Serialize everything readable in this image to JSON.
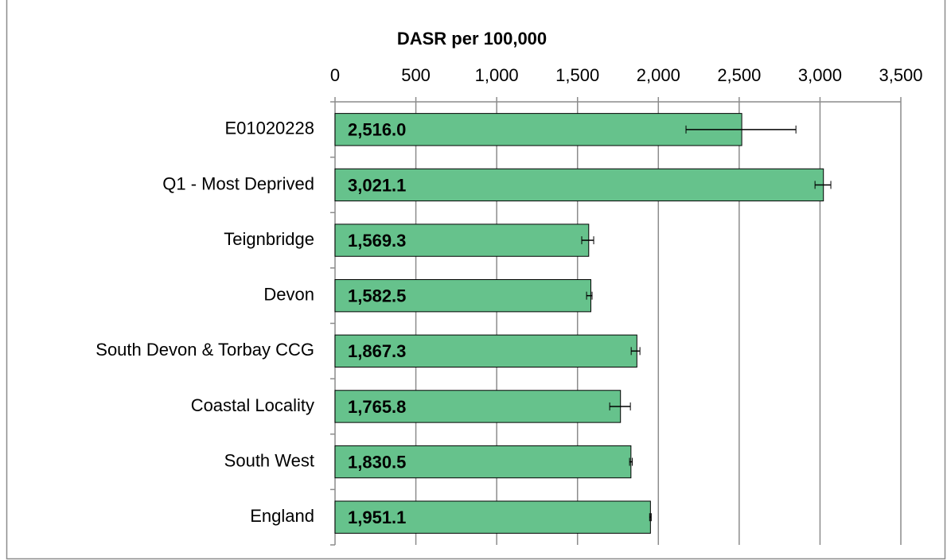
{
  "chart_data": {
    "type": "bar",
    "orientation": "horizontal",
    "axis_title": "DASR per 100,000",
    "categories": [
      "E01020228",
      "Q1 - Most Deprived",
      "Teignbridge",
      "Devon",
      "South Devon & Torbay CCG",
      "Coastal Locality",
      "South West",
      "England"
    ],
    "values": [
      2516.0,
      3021.1,
      1569.3,
      1582.5,
      1867.3,
      1765.8,
      1830.5,
      1951.1
    ],
    "value_labels": [
      "2,516.0",
      "3,021.1",
      "1,569.3",
      "1,582.5",
      "1,867.3",
      "1,765.8",
      "1,830.5",
      "1,951.1"
    ],
    "ci_lower": [
      2171,
      2969,
      1526,
      1556,
      1832,
      1699,
      1822,
      1946
    ],
    "ci_upper": [
      2851,
      3067,
      1600,
      1590,
      1886,
      1827,
      1839,
      1956
    ],
    "color": "#66c28c",
    "xlim": [
      0,
      3500
    ],
    "xticks": [
      0,
      500,
      {
        "value": 1000,
        "label": "1,000"
      },
      {
        "value": 1500,
        "label": "1,500"
      },
      {
        "value": 2000,
        "label": "2,000"
      },
      {
        "value": 2500,
        "label": "2,500"
      },
      {
        "value": 3000,
        "label": "3,000"
      },
      {
        "value": 3500,
        "label": "3,500"
      }
    ],
    "grid": true
  }
}
